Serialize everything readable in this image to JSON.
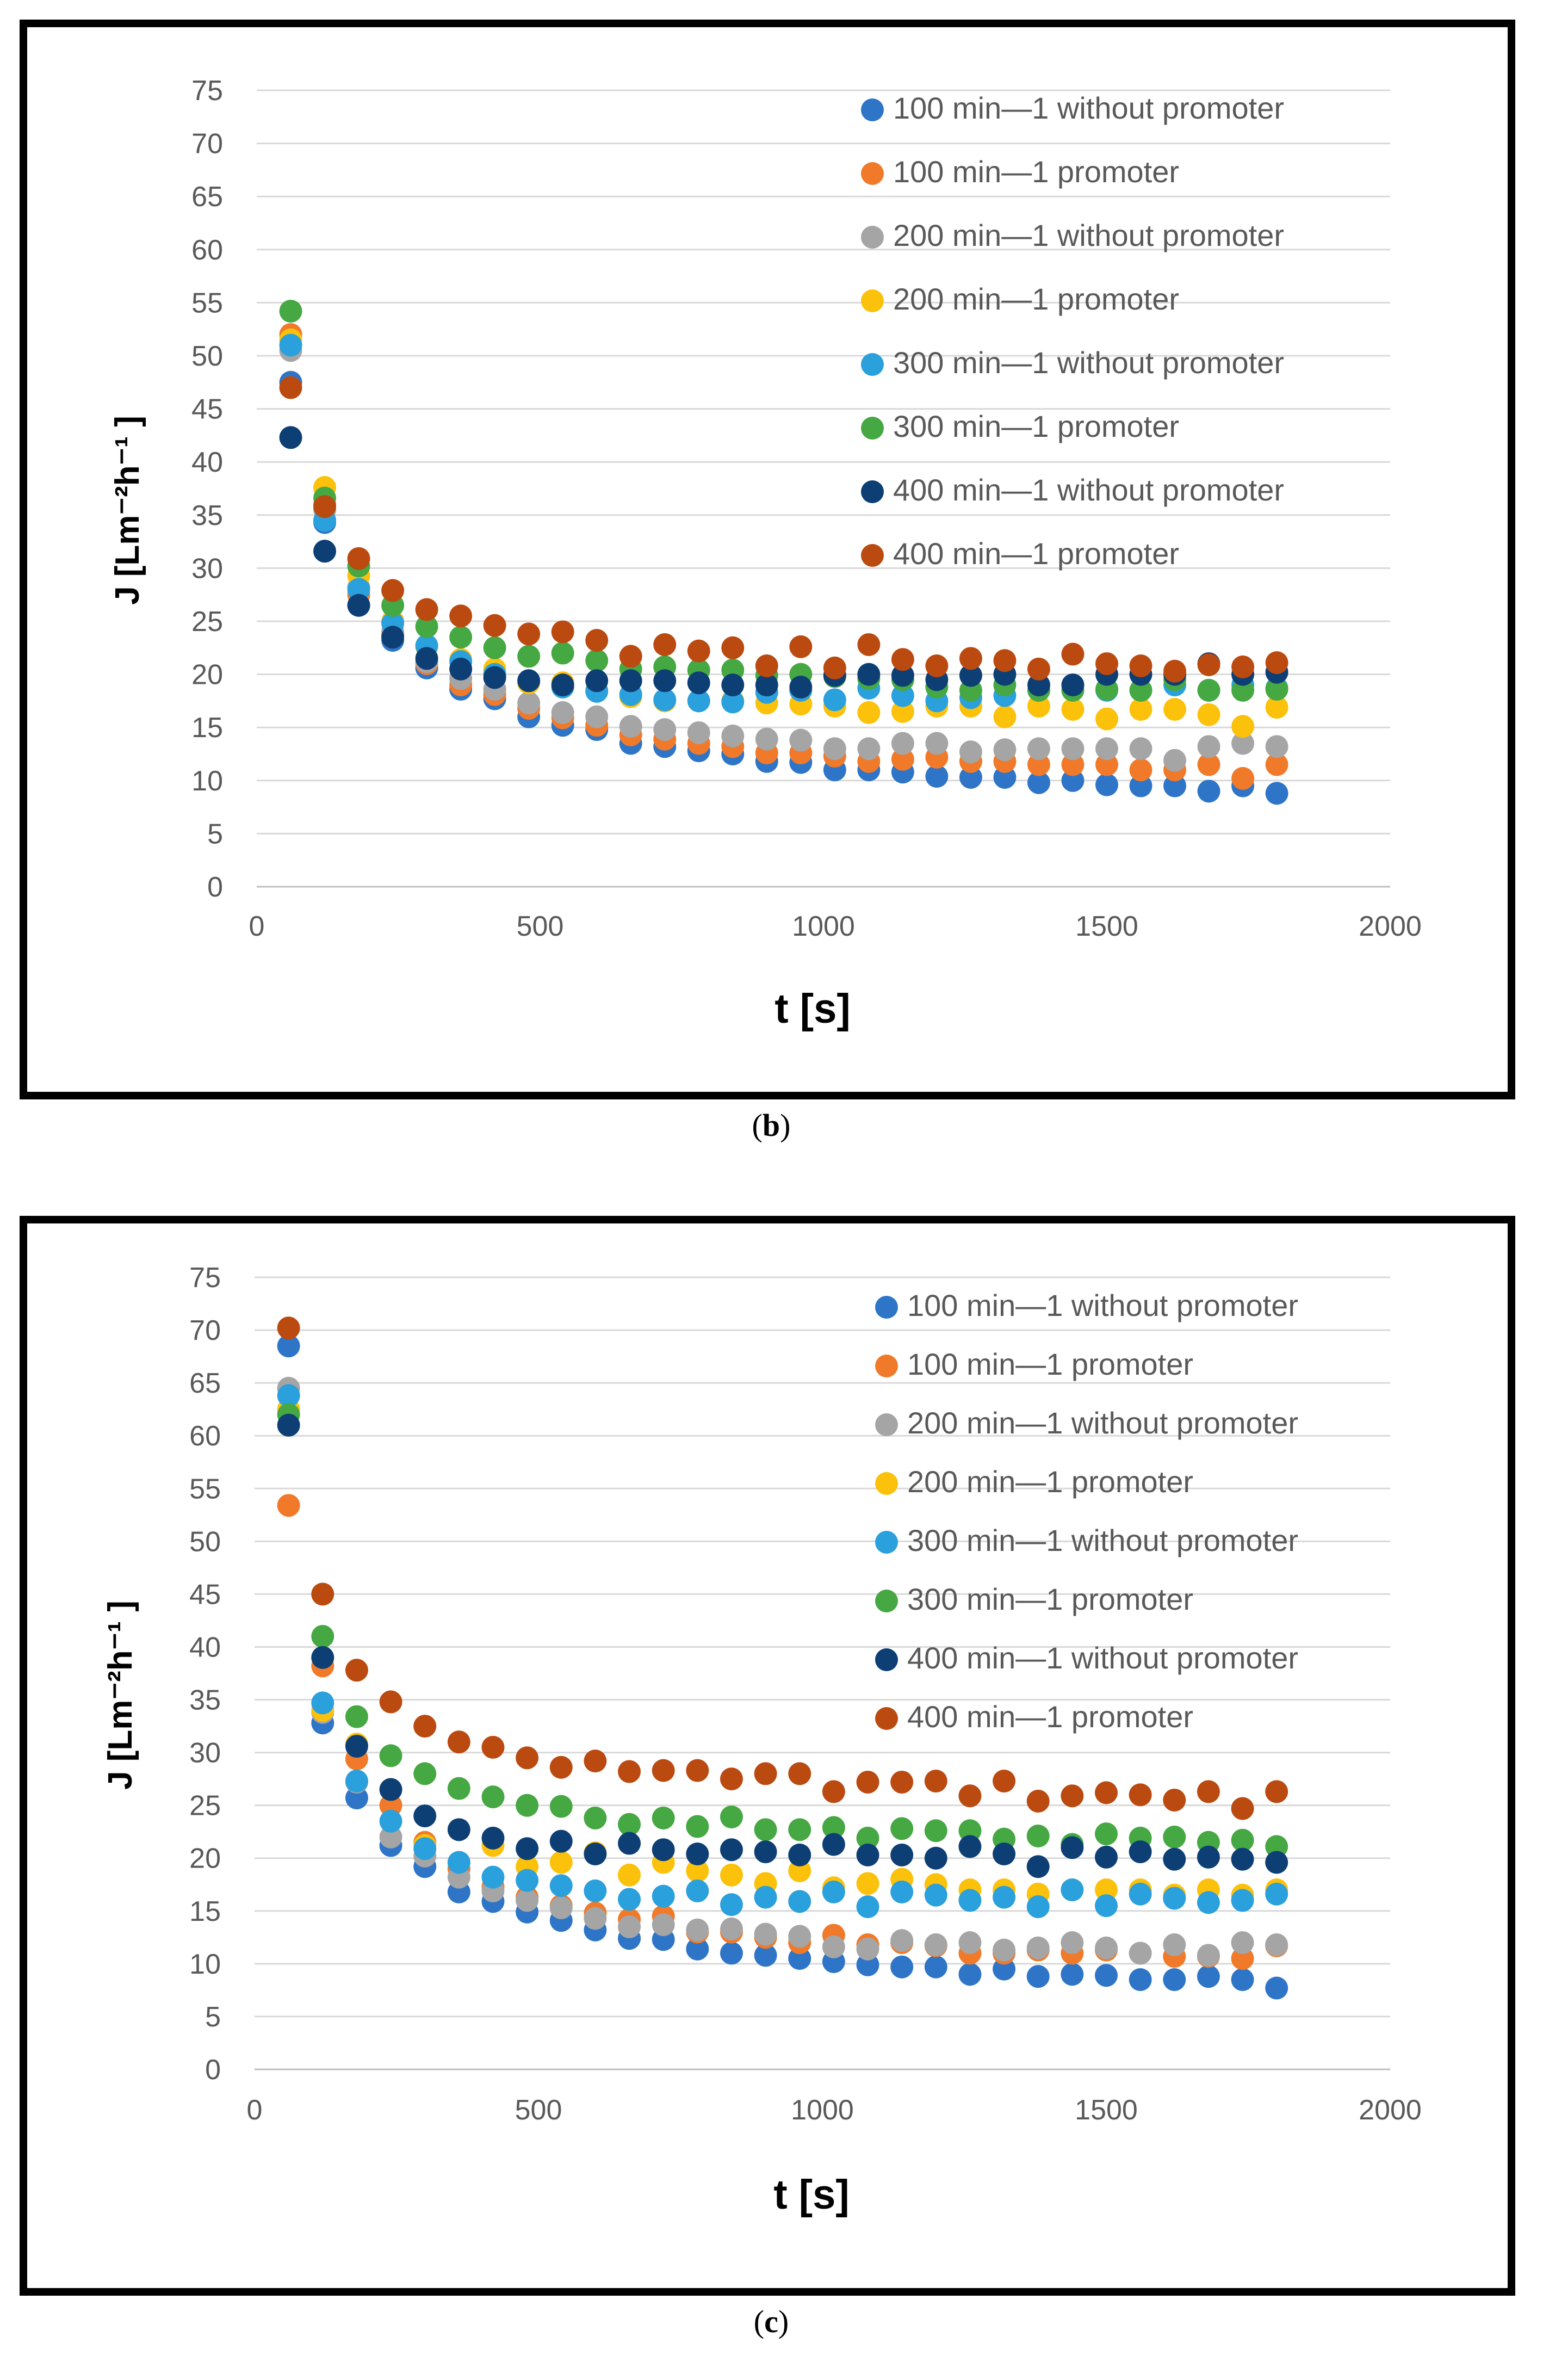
{
  "series_styles": [
    {
      "name": "100 min—1 without promoter",
      "color": "#2e75c8"
    },
    {
      "name": "100 min—1 promoter",
      "color": "#f07a2a"
    },
    {
      "name": "200 min—1 without promoter",
      "color": "#a5a5a5"
    },
    {
      "name": "200 min—1 promoter",
      "color": "#fcc10a"
    },
    {
      "name": "300 min—1 without promoter",
      "color": "#2aa0dc"
    },
    {
      "name": "300 min—1 promoter",
      "color": "#45a842"
    },
    {
      "name": "400 min—1 without promoter",
      "color": "#0d3f75"
    },
    {
      "name": "400 min—1 promoter",
      "color": "#bb4a10"
    }
  ],
  "captions": {
    "b_open": "(",
    "b_letter": "b",
    "b_close": ")",
    "c_open": "(",
    "c_letter": "c",
    "c_close": ")"
  },
  "chart_data": [
    {
      "panel": "b",
      "type": "scatter",
      "title": "",
      "xlabel": "t [s]",
      "ylabel": "J [Lm⁻²h⁻¹ ]",
      "xlim": [
        0,
        2000
      ],
      "ylim": [
        0,
        75
      ],
      "xticks": [
        0,
        500,
        1000,
        1500,
        2000
      ],
      "yticks": [
        0,
        5,
        10,
        15,
        20,
        25,
        30,
        35,
        40,
        45,
        50,
        55,
        60,
        65,
        70,
        75
      ],
      "grid": "horizontal",
      "legend": "top-right",
      "x": [
        60,
        120,
        180,
        240,
        300,
        360,
        420,
        480,
        540,
        600,
        660,
        720,
        780,
        840,
        900,
        960,
        1020,
        1080,
        1140,
        1200,
        1260,
        1320,
        1380,
        1440,
        1500,
        1560,
        1620,
        1680,
        1740,
        1800
      ],
      "series": [
        {
          "name": "100 min—1 without promoter",
          "values": [
            47.5,
            34.3,
            26.5,
            23.2,
            20.6,
            18.6,
            17.7,
            16.0,
            15.2,
            14.8,
            13.5,
            13.2,
            12.8,
            12.5,
            11.8,
            11.7,
            11.0,
            11.0,
            10.8,
            10.4,
            10.3,
            10.3,
            9.8,
            10.0,
            9.6,
            9.5,
            9.5,
            9.0,
            9.5,
            8.8
          ]
        },
        {
          "name": "100 min—1 promoter",
          "values": [
            52.0,
            36.0,
            27.5,
            23.7,
            21.0,
            19.0,
            18.1,
            16.8,
            15.9,
            15.2,
            14.3,
            13.9,
            13.5,
            13.2,
            12.6,
            12.6,
            12.3,
            11.8,
            12.0,
            12.2,
            11.8,
            11.8,
            11.5,
            11.5,
            11.5,
            11.0,
            11.0,
            11.5,
            10.2,
            11.5
          ]
        },
        {
          "name": "200 min—1 without promoter",
          "values": [
            50.5,
            35.5,
            28.2,
            24.0,
            21.2,
            19.6,
            18.6,
            17.3,
            16.4,
            16.0,
            15.1,
            14.8,
            14.5,
            14.2,
            13.9,
            13.8,
            13.0,
            13.0,
            13.5,
            13.5,
            12.7,
            12.9,
            13.0,
            13.0,
            13.0,
            13.0,
            11.9,
            13.2,
            13.5,
            13.2
          ]
        },
        {
          "name": "200 min—1 promoter",
          "values": [
            51.5,
            37.6,
            29.3,
            25.0,
            22.6,
            21.4,
            20.5,
            19.2,
            19.2,
            18.5,
            17.9,
            17.5,
            17.5,
            17.5,
            17.3,
            17.2,
            17.0,
            16.4,
            16.5,
            17.0,
            17.0,
            16.0,
            17.0,
            16.7,
            15.8,
            16.7,
            16.7,
            16.2,
            15.1,
            16.9
          ]
        },
        {
          "name": "300 min—1 without promoter",
          "values": [
            51.0,
            34.5,
            28.0,
            24.8,
            22.7,
            21.2,
            20.0,
            19.4,
            18.8,
            18.4,
            18.1,
            17.6,
            17.5,
            17.4,
            18.3,
            18.5,
            17.6,
            18.7,
            18.0,
            17.5,
            17.8,
            18.0,
            18.5,
            19.0,
            18.5,
            18.5,
            19.0,
            18.5,
            19.0,
            18.7
          ]
        },
        {
          "name": "300 min—1 promoter",
          "values": [
            54.2,
            36.6,
            30.2,
            26.5,
            24.5,
            23.5,
            22.5,
            21.7,
            22.0,
            21.3,
            20.5,
            20.7,
            20.4,
            20.4,
            19.9,
            20.0,
            19.8,
            19.6,
            19.5,
            18.8,
            18.5,
            19.0,
            18.5,
            18.5,
            18.6,
            18.5,
            19.5,
            18.5,
            18.5,
            18.6
          ]
        },
        {
          "name": "400 min—1 without promoter",
          "values": [
            42.3,
            31.6,
            26.5,
            23.5,
            21.5,
            20.5,
            19.7,
            19.4,
            19.0,
            19.4,
            19.4,
            19.4,
            19.2,
            19.0,
            19.0,
            18.8,
            19.9,
            20.0,
            19.9,
            19.5,
            19.9,
            20.0,
            19.0,
            19.0,
            20.0,
            20.0,
            20.0,
            21.0,
            20.0,
            20.2
          ]
        },
        {
          "name": "400 min—1 promoter",
          "values": [
            47.0,
            35.8,
            30.9,
            27.9,
            26.1,
            25.5,
            24.6,
            23.8,
            24.0,
            23.2,
            21.7,
            22.8,
            22.2,
            22.5,
            20.8,
            22.6,
            20.6,
            22.8,
            21.4,
            20.8,
            21.5,
            21.3,
            20.5,
            21.9,
            21.0,
            20.8,
            20.3,
            20.9,
            20.7,
            21.1
          ]
        }
      ]
    },
    {
      "panel": "c",
      "type": "scatter",
      "title": "",
      "xlabel": "t [s]",
      "ylabel": "J [Lm⁻²h⁻¹ ]",
      "xlim": [
        0,
        2000
      ],
      "ylim": [
        0,
        75
      ],
      "xticks": [
        0,
        500,
        1000,
        1500,
        2000
      ],
      "yticks": [
        0,
        5,
        10,
        15,
        20,
        25,
        30,
        35,
        40,
        45,
        50,
        55,
        60,
        65,
        70,
        75
      ],
      "grid": "horizontal",
      "legend": "top-right",
      "x": [
        60,
        120,
        180,
        240,
        300,
        360,
        420,
        480,
        540,
        600,
        660,
        720,
        780,
        840,
        900,
        960,
        1020,
        1080,
        1140,
        1200,
        1260,
        1320,
        1380,
        1440,
        1500,
        1560,
        1620,
        1680,
        1740,
        1800
      ],
      "series": [
        {
          "name": "100 min—1 without promoter",
          "values": [
            68.5,
            32.8,
            25.7,
            21.2,
            19.2,
            16.8,
            15.9,
            14.9,
            14.1,
            13.2,
            12.4,
            12.3,
            11.4,
            11.0,
            10.8,
            10.5,
            10.2,
            9.9,
            9.7,
            9.7,
            9.0,
            9.5,
            8.8,
            9.0,
            8.9,
            8.5,
            8.5,
            8.8,
            8.5,
            7.7
          ]
        },
        {
          "name": "100 min—1 promoter",
          "values": [
            53.4,
            38.2,
            29.4,
            25.0,
            21.5,
            19.0,
            17.3,
            16.3,
            15.5,
            14.8,
            14.2,
            14.5,
            13.0,
            13.0,
            12.5,
            12.0,
            12.7,
            11.8,
            12.0,
            11.7,
            11.0,
            11.0,
            11.3,
            11.0,
            11.3,
            11.0,
            10.7,
            10.7,
            10.5,
            11.7
          ]
        },
        {
          "name": "200 min—1 without promoter",
          "values": [
            64.5,
            33.8,
            27.2,
            22.0,
            20.2,
            18.2,
            16.9,
            16.0,
            15.3,
            14.3,
            13.5,
            13.7,
            13.2,
            13.3,
            12.8,
            12.6,
            11.6,
            11.4,
            12.2,
            11.8,
            12.0,
            11.3,
            11.5,
            12.0,
            11.5,
            11.0,
            11.8,
            10.8,
            12.0,
            11.8
          ]
        },
        {
          "name": "200 min—1 promoter",
          "values": [
            62.5,
            34.0,
            30.8,
            26.5,
            21.2,
            19.6,
            21.2,
            19.2,
            19.6,
            20.5,
            18.4,
            19.6,
            18.8,
            18.4,
            17.6,
            18.8,
            17.2,
            17.6,
            18.0,
            17.5,
            17.0,
            17.0,
            16.6,
            17.0,
            17.0,
            17.0,
            16.5,
            17.0,
            16.5,
            17.0
          ]
        },
        {
          "name": "300 min—1 without promoter",
          "values": [
            63.8,
            34.7,
            27.3,
            23.5,
            20.9,
            19.6,
            18.2,
            17.9,
            17.4,
            16.9,
            16.1,
            16.4,
            16.9,
            15.6,
            16.3,
            15.9,
            16.8,
            15.4,
            16.8,
            16.5,
            16.0,
            16.3,
            15.4,
            17.0,
            15.5,
            16.6,
            16.2,
            15.8,
            16.0,
            16.6
          ]
        },
        {
          "name": "300 min—1 promoter",
          "values": [
            62.0,
            41.0,
            33.4,
            29.7,
            28.0,
            26.6,
            25.8,
            25.0,
            24.9,
            23.8,
            23.2,
            23.8,
            23.0,
            23.9,
            22.7,
            22.7,
            22.9,
            21.9,
            22.8,
            22.6,
            22.6,
            21.8,
            22.1,
            21.3,
            22.3,
            21.9,
            22.0,
            21.5,
            21.7,
            21.1
          ]
        },
        {
          "name": "400 min—1 without promoter",
          "values": [
            61.0,
            39.0,
            30.6,
            26.5,
            24.0,
            22.7,
            21.9,
            20.9,
            21.6,
            20.4,
            21.4,
            20.8,
            20.4,
            20.8,
            20.6,
            20.3,
            21.3,
            20.3,
            20.3,
            20.0,
            21.1,
            20.4,
            19.2,
            21.0,
            20.1,
            20.6,
            19.9,
            20.1,
            19.9,
            19.6
          ]
        },
        {
          "name": "400 min—1 promoter",
          "values": [
            70.2,
            45.0,
            37.8,
            34.8,
            32.5,
            31.0,
            30.5,
            29.5,
            28.6,
            29.2,
            28.2,
            28.3,
            28.3,
            27.5,
            28.0,
            28.0,
            26.3,
            27.2,
            27.2,
            27.3,
            25.9,
            27.3,
            25.4,
            25.9,
            26.2,
            26.0,
            25.5,
            26.3,
            24.7,
            26.3
          ]
        }
      ]
    }
  ]
}
